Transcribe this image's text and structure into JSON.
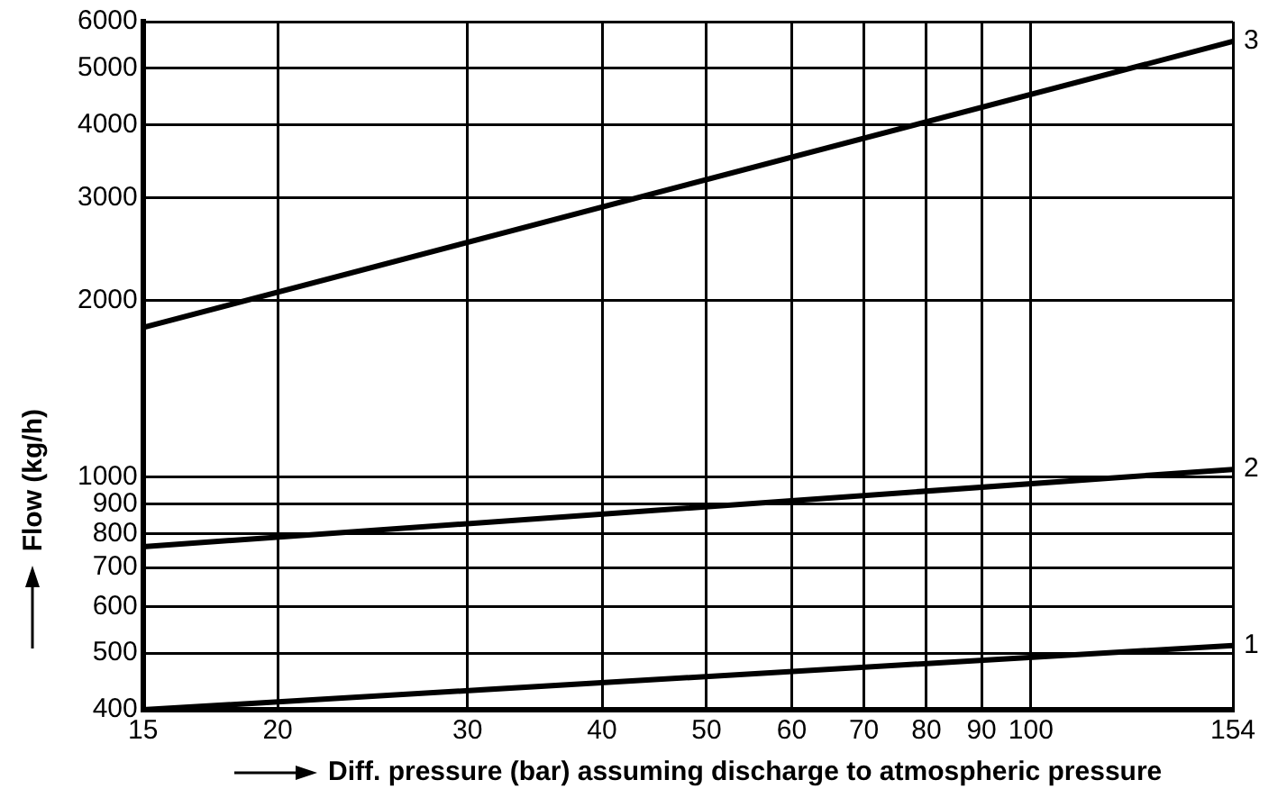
{
  "chart_data": {
    "type": "line",
    "xlabel": "Diff. pressure (bar) assuming discharge to atmospheric pressure",
    "ylabel": "Flow (kg/h)",
    "log": "xy",
    "grid": true,
    "legend": false,
    "marker": "none",
    "line_style": "solid",
    "xlim": [
      15,
      154
    ],
    "xticks": [
      15,
      20,
      30,
      40,
      50,
      60,
      70,
      80,
      90,
      100,
      154
    ],
    "ylim": [
      400,
      6000
    ],
    "yticks": [
      400,
      500,
      600,
      700,
      800,
      900,
      1000,
      2000,
      3000,
      4000,
      5000,
      6000
    ],
    "x": [
      15,
      154
    ],
    "series": [
      {
        "name": "1",
        "color": "#000000",
        "values": [
          400,
          515
        ]
      },
      {
        "name": "2",
        "color": "#000000",
        "values": [
          760,
          1030
        ]
      },
      {
        "name": "3",
        "color": "#000000",
        "values": [
          1800,
          5550
        ]
      }
    ]
  }
}
